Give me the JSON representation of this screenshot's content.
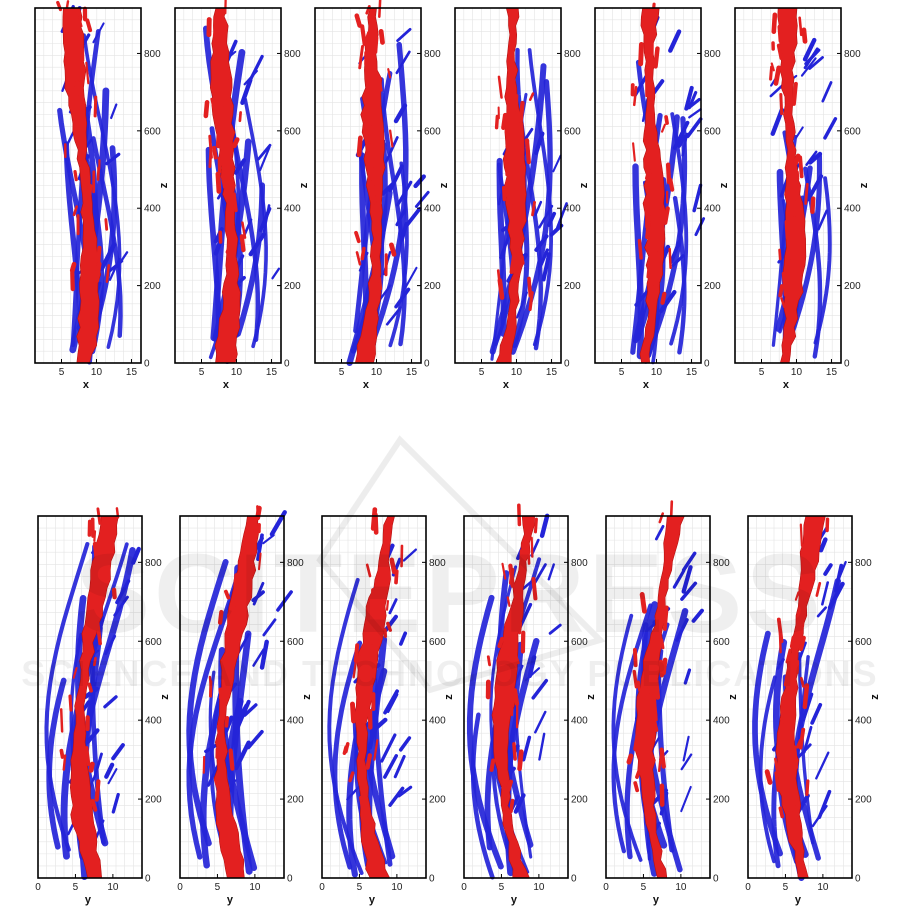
{
  "figure": {
    "colors": {
      "positive": "#e32020",
      "negative": "#2424d8",
      "frame": "#000000",
      "grid": "#e4e4e4"
    },
    "rows": [
      {
        "id": "top",
        "x_label": "x",
        "y_label": "z",
        "x_ticks": [
          "5",
          "10",
          "15"
        ],
        "z_ticks": [
          "0",
          "200",
          "400",
          "600",
          "800"
        ],
        "panels": [
          "1",
          "2",
          "3",
          "4",
          "5",
          "6"
        ]
      },
      {
        "id": "bottom",
        "x_label": "y",
        "y_label": "z",
        "x_ticks": [
          "0",
          "5",
          "10"
        ],
        "z_ticks": [
          "0",
          "200",
          "400",
          "600",
          "800"
        ],
        "panels": [
          "1",
          "2",
          "3",
          "4",
          "5",
          "6"
        ]
      }
    ]
  },
  "watermark": {
    "main": "SCITEPRESS",
    "sub": "SCIENCE AND TECHNOLOGY PUBLICATIONS"
  }
}
